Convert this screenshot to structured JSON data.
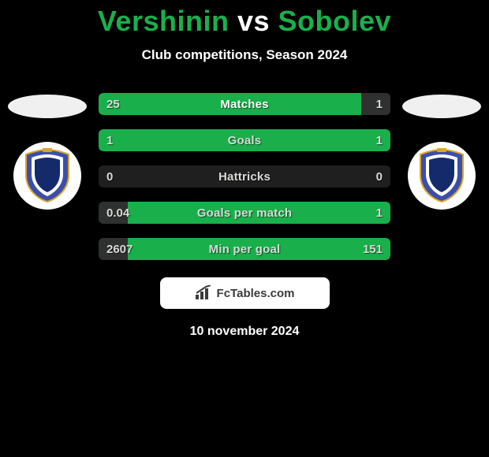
{
  "colors": {
    "background": "#000000",
    "accent_green": "#19b04c",
    "text_white": "#ffffff",
    "text_light": "#d9dad7",
    "bar_track": "#1f1f1f",
    "bar_left_fill_dark": "#2f3130",
    "card_bg": "#ffffff",
    "card_text": "#3a3a3a",
    "crest_blue": "#3b4fa8",
    "crest_gold": "#d9a62e",
    "crest_navy": "#142a6b"
  },
  "header": {
    "player1": "Vershinin",
    "vs": "vs",
    "player2": "Sobolev",
    "subtitle": "Club competitions, Season 2024"
  },
  "bars": [
    {
      "label": "Matches",
      "left_val": "25",
      "right_val": "1",
      "left_pct": 90,
      "right_pct": 10,
      "left_color": "#19b04c",
      "right_color": "#2f3130",
      "label_color": "#ffffff",
      "vals_color": "#d9dad7"
    },
    {
      "label": "Goals",
      "left_val": "1",
      "right_val": "1",
      "left_pct": 50,
      "right_pct": 50,
      "left_color": "#19b04c",
      "right_color": "#19b04c",
      "label_color": "#d9dad7",
      "vals_color": "#d9dad7"
    },
    {
      "label": "Hattricks",
      "left_val": "0",
      "right_val": "0",
      "left_pct": 0,
      "right_pct": 0,
      "left_color": "#19b04c",
      "right_color": "#19b04c",
      "label_color": "#d9dad7",
      "vals_color": "#d9dad7"
    },
    {
      "label": "Goals per match",
      "left_val": "0.04",
      "right_val": "1",
      "left_pct": 10,
      "right_pct": 90,
      "left_color": "#2f3130",
      "right_color": "#19b04c",
      "label_color": "#d9dad7",
      "vals_color": "#d9dad7"
    },
    {
      "label": "Min per goal",
      "left_val": "2607",
      "right_val": "151",
      "left_pct": 10,
      "right_pct": 90,
      "left_color": "#2f3130",
      "right_color": "#19b04c",
      "label_color": "#d9dad7",
      "vals_color": "#d9dad7"
    }
  ],
  "footer": {
    "brand_pre": "Fc",
    "brand_post": "Tables.com",
    "date": "10 november 2024"
  }
}
